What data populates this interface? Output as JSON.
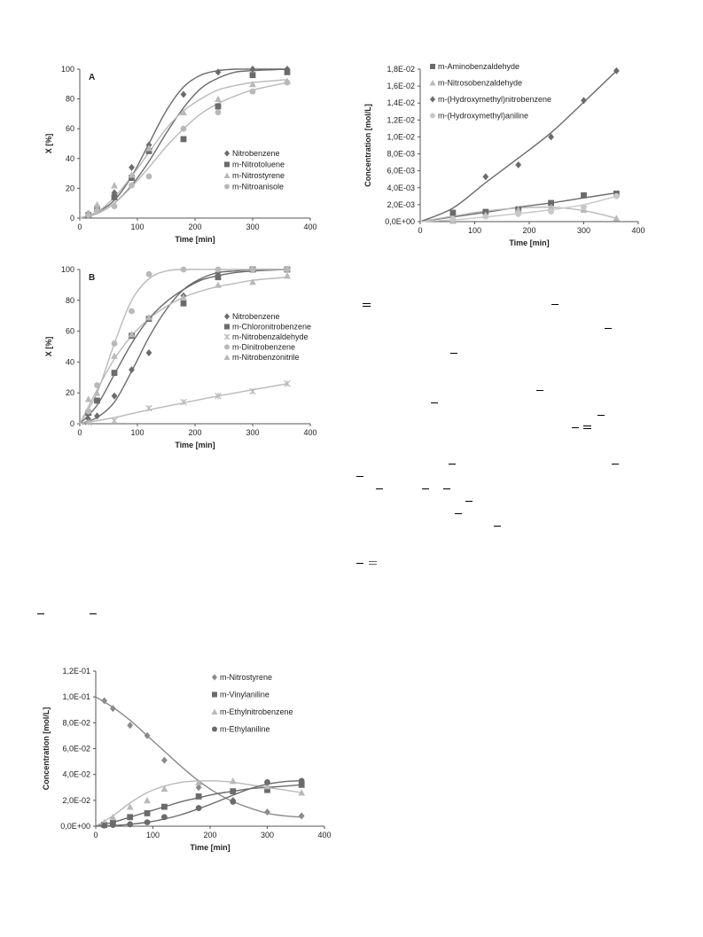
{
  "colors": {
    "dark": "#6b6b6b",
    "mid": "#8a8a8a",
    "light": "#b9b9b9",
    "lighter": "#c8c8c8",
    "axis": "#555555"
  },
  "chart_data": [
    {
      "id": "A",
      "type": "scatter",
      "panel_label": "A",
      "xlabel": "Time [min]",
      "ylabel": "X [%]",
      "xlim": [
        0,
        400
      ],
      "ylim": [
        0,
        100
      ],
      "xticks": [
        "0",
        "100",
        "200",
        "300",
        "400"
      ],
      "yticks": [
        "0",
        "20",
        "40",
        "60",
        "80",
        "100"
      ],
      "legend_position": "right",
      "series": [
        {
          "name": "Nitrobenzene",
          "marker": "diamond",
          "color": "#6b6b6b",
          "x": [
            15,
            30,
            60,
            90,
            120,
            180,
            240,
            300,
            360
          ],
          "y": [
            3,
            8,
            17,
            34,
            49,
            83,
            98,
            100,
            100
          ],
          "fit": {
            "x": [
              0,
              30,
              60,
              90,
              120,
              150,
              180,
              210,
              240,
              270,
              300,
              360
            ],
            "y": [
              0,
              4,
              12,
              28,
              50,
              72,
              88,
              96,
              99,
              100,
              100,
              100
            ]
          }
        },
        {
          "name": "m-Nitrotoluene",
          "marker": "square",
          "color": "#6b6b6b",
          "x": [
            15,
            30,
            60,
            90,
            120,
            180,
            240,
            300,
            360
          ],
          "y": [
            2,
            6,
            14,
            27,
            45,
            53,
            75,
            96,
            98
          ],
          "fit": {
            "x": [
              0,
              30,
              60,
              90,
              120,
              150,
              180,
              210,
              240,
              270,
              300,
              360
            ],
            "y": [
              0,
              3,
              10,
              22,
              38,
              57,
              74,
              87,
              94,
              98,
              99,
              100
            ]
          }
        },
        {
          "name": "m-Nitrostyrene",
          "marker": "triangle",
          "color": "#b9b9b9",
          "x": [
            15,
            30,
            60,
            90,
            120,
            180,
            240,
            300,
            360
          ],
          "y": [
            3,
            9,
            22,
            29,
            47,
            71,
            80,
            90,
            92
          ],
          "fit": {
            "x": [
              0,
              30,
              60,
              90,
              120,
              150,
              180,
              210,
              240,
              270,
              300,
              360
            ],
            "y": [
              0,
              4,
              14,
              28,
              44,
              60,
              72,
              80,
              86,
              89,
              91,
              93
            ]
          }
        },
        {
          "name": "m-Nitroanisole",
          "marker": "circle",
          "color": "#b9b9b9",
          "x": [
            15,
            30,
            60,
            90,
            120,
            180,
            240,
            300,
            360
          ],
          "y": [
            2,
            5,
            8,
            22,
            28,
            60,
            71,
            85,
            91
          ],
          "fit": {
            "x": [
              0,
              30,
              60,
              90,
              120,
              150,
              180,
              210,
              240,
              270,
              300,
              360
            ],
            "y": [
              0,
              3,
              10,
              21,
              34,
              48,
              60,
              70,
              77,
              82,
              86,
              91
            ]
          }
        }
      ]
    },
    {
      "id": "B",
      "type": "scatter",
      "panel_label": "B",
      "xlabel": "Time [min]",
      "ylabel": "X [%]",
      "xlim": [
        0,
        400
      ],
      "ylim": [
        0,
        100
      ],
      "xticks": [
        "0",
        "100",
        "200",
        "300",
        "400"
      ],
      "yticks": [
        "0",
        "20",
        "40",
        "60",
        "80",
        "100"
      ],
      "legend_position": "right",
      "series": [
        {
          "name": "Nitrobenzene",
          "marker": "diamond",
          "color": "#6b6b6b",
          "x": [
            15,
            30,
            60,
            90,
            120,
            180,
            240,
            300,
            360
          ],
          "y": [
            3,
            5,
            18,
            35,
            46,
            83,
            98,
            100,
            100
          ],
          "fit": {
            "x": [
              0,
              30,
              60,
              90,
              120,
              150,
              180,
              210,
              240,
              270,
              300,
              360
            ],
            "y": [
              0,
              4,
              14,
              34,
              56,
              74,
              87,
              94,
              98,
              99,
              100,
              100
            ]
          }
        },
        {
          "name": "m-Chloronitrobenzene",
          "marker": "square",
          "color": "#6b6b6b",
          "x": [
            15,
            30,
            60,
            90,
            120,
            180,
            240,
            300,
            360
          ],
          "y": [
            7,
            15,
            33,
            57,
            68,
            78,
            95,
            100,
            100
          ],
          "fit": {
            "x": [
              0,
              30,
              60,
              90,
              120,
              150,
              180,
              210,
              240,
              270,
              300,
              360
            ],
            "y": [
              0,
              12,
              32,
              52,
              68,
              79,
              87,
              93,
              96,
              98,
              99,
              100
            ]
          }
        },
        {
          "name": "m-Nitrobenzaldehyde",
          "marker": "star",
          "color": "#b9b9b9",
          "x": [
            15,
            60,
            120,
            180,
            240,
            300,
            360
          ],
          "y": [
            1,
            2,
            10,
            14,
            18,
            21,
            26
          ],
          "fit": {
            "x": [
              0,
              60,
              120,
              180,
              240,
              300,
              360
            ],
            "y": [
              0,
              4,
              9,
              13.5,
              18,
              22,
              26
            ]
          }
        },
        {
          "name": "m-Dinitrobenzene",
          "marker": "circle",
          "color": "#b9b9b9",
          "x": [
            15,
            30,
            60,
            90,
            120,
            180,
            240,
            300,
            360
          ],
          "y": [
            8,
            25,
            52,
            73,
            97,
            100,
            100,
            100,
            100
          ],
          "fit": {
            "x": [
              0,
              30,
              60,
              90,
              120,
              150,
              180,
              240,
              300,
              360
            ],
            "y": [
              0,
              20,
              52,
              80,
              94,
              99,
              100,
              100,
              100,
              100
            ]
          }
        },
        {
          "name": "m-Nitrobenzonitrile",
          "marker": "triangle",
          "color": "#b9b9b9",
          "x": [
            15,
            30,
            60,
            90,
            120,
            180,
            240,
            300,
            360
          ],
          "y": [
            16,
            20,
            44,
            58,
            69,
            82,
            90,
            92,
            96
          ],
          "fit": {
            "x": [
              0,
              30,
              60,
              90,
              120,
              150,
              180,
              210,
              240,
              270,
              300,
              360
            ],
            "y": [
              0,
              22,
              42,
              57,
              68,
              76,
              82,
              86,
              89,
              91,
              93,
              95
            ]
          }
        }
      ]
    },
    {
      "id": "C",
      "type": "scatter",
      "panel_label": "",
      "xlabel": "Time [min]",
      "ylabel": "Concentration [mol/L]",
      "xlim": [
        0,
        400
      ],
      "ylim": [
        0,
        0.018
      ],
      "xticks": [
        "0",
        "100",
        "200",
        "300",
        "400"
      ],
      "yticks": [
        "0,0E+00",
        "2,0E-03",
        "4,0E-03",
        "6,0E-03",
        "8,0E-03",
        "1,0E-02",
        "1,2E-02",
        "1,4E-02",
        "1,6E-02",
        "1,8E-02"
      ],
      "legend_position": "top-left",
      "series": [
        {
          "name": "m-Aminobenzaldehyde",
          "marker": "square",
          "color": "#6b6b6b",
          "x": [
            60,
            120,
            180,
            240,
            300,
            360
          ],
          "y": [
            0.00105,
            0.00115,
            0.00145,
            0.0022,
            0.0031,
            0.0033
          ],
          "fit": {
            "x": [
              0,
              60,
              120,
              180,
              240,
              300,
              360
            ],
            "y": [
              0,
              0.00055,
              0.0011,
              0.0017,
              0.0022,
              0.0028,
              0.0034
            ]
          }
        },
        {
          "name": "m-Nitrosobenzaldehyde",
          "marker": "triangle",
          "color": "#b9b9b9",
          "x": [
            60,
            120,
            180,
            240,
            300,
            360
          ],
          "y": [
            0.0001,
            0.0008,
            0.0014,
            0.0017,
            0.0014,
            0.0004
          ],
          "fit": {
            "x": [
              0,
              60,
              120,
              180,
              240,
              300,
              360
            ],
            "y": [
              0,
              0.00065,
              0.00125,
              0.0016,
              0.0017,
              0.0013,
              0.0004
            ]
          }
        },
        {
          "name": "m-(Hydroxymethyl)nitrobenzene",
          "marker": "diamond",
          "color": "#6b6b6b",
          "x": [
            120,
            180,
            240,
            300,
            360
          ],
          "y": [
            0.0053,
            0.0067,
            0.01,
            0.0143,
            0.0178
          ],
          "fit": {
            "x": [
              0,
              60,
              120,
              180,
              240,
              300,
              360
            ],
            "y": [
              0,
              0.0016,
              0.0046,
              0.0075,
              0.0105,
              0.0141,
              0.0178
            ]
          }
        },
        {
          "name": "m-(Hydroxymethyl)aniline",
          "marker": "circle",
          "color": "#c8c8c8",
          "x": [
            60,
            120,
            180,
            240,
            300,
            360
          ],
          "y": [
            0.0003,
            0.0006,
            0.0009,
            0.0012,
            0.0017,
            0.003
          ],
          "fit": {
            "x": [
              0,
              60,
              120,
              180,
              240,
              300,
              360
            ],
            "y": [
              0,
              0.0002,
              0.00055,
              0.00095,
              0.0014,
              0.002,
              0.003
            ]
          }
        }
      ]
    },
    {
      "id": "D",
      "type": "scatter",
      "panel_label": "",
      "xlabel": "Time [min]",
      "ylabel": "Concentration  [mol/L]",
      "xlim": [
        0,
        400
      ],
      "ylim": [
        0,
        0.12
      ],
      "xticks": [
        "0",
        "100",
        "200",
        "300",
        "400"
      ],
      "yticks": [
        "0,0E+00",
        "2,0E-02",
        "4,0E-02",
        "6,0E-02",
        "8,0E-02",
        "1,0E-01",
        "1,2E-01"
      ],
      "legend_position": "top-right",
      "series": [
        {
          "name": "m-Nitrostyrene",
          "marker": "diamond",
          "color": "#8a8a8a",
          "x": [
            15,
            30,
            60,
            90,
            120,
            180,
            240,
            300,
            360
          ],
          "y": [
            0.097,
            0.091,
            0.078,
            0.07,
            0.051,
            0.03,
            0.02,
            0.011,
            0.008
          ],
          "fit": {
            "x": [
              0,
              30,
              60,
              90,
              120,
              150,
              180,
              210,
              240,
              270,
              300,
              330,
              360
            ],
            "y": [
              0.1,
              0.092,
              0.082,
              0.07,
              0.058,
              0.046,
              0.035,
              0.026,
              0.019,
              0.014,
              0.01,
              0.008,
              0.007
            ]
          }
        },
        {
          "name": "m-Vinylaniline",
          "marker": "square",
          "color": "#6b6b6b",
          "x": [
            15,
            30,
            60,
            90,
            120,
            180,
            240,
            300,
            360
          ],
          "y": [
            0.001,
            0.003,
            0.007,
            0.01,
            0.015,
            0.023,
            0.027,
            0.028,
            0.032
          ],
          "fit": {
            "x": [
              0,
              30,
              60,
              90,
              120,
              150,
              180,
              210,
              240,
              270,
              300,
              360
            ],
            "y": [
              0,
              0.003,
              0.007,
              0.011,
              0.015,
              0.019,
              0.022,
              0.025,
              0.027,
              0.029,
              0.03,
              0.032
            ]
          }
        },
        {
          "name": "m-Ethylnitrobenzene",
          "marker": "triangle",
          "color": "#b9b9b9",
          "x": [
            15,
            30,
            60,
            90,
            120,
            180,
            240,
            300,
            360
          ],
          "y": [
            0.003,
            0.007,
            0.015,
            0.02,
            0.029,
            0.034,
            0.035,
            0.031,
            0.026
          ],
          "fit": {
            "x": [
              0,
              30,
              60,
              90,
              120,
              150,
              180,
              210,
              240,
              270,
              300,
              360
            ],
            "y": [
              0,
              0.008,
              0.018,
              0.026,
              0.031,
              0.034,
              0.035,
              0.035,
              0.034,
              0.032,
              0.03,
              0.026
            ]
          }
        },
        {
          "name": "m-Ethylaniline",
          "marker": "circle",
          "color": "#6b6b6b",
          "x": [
            15,
            30,
            60,
            90,
            120,
            180,
            240,
            300,
            360
          ],
          "y": [
            0.0005,
            0.001,
            0.0015,
            0.003,
            0.007,
            0.014,
            0.019,
            0.034,
            0.035
          ],
          "fit": {
            "x": [
              0,
              30,
              60,
              90,
              120,
              150,
              180,
              210,
              240,
              270,
              300,
              330,
              360
            ],
            "y": [
              0,
              0.0005,
              0.0015,
              0.003,
              0.0055,
              0.009,
              0.0135,
              0.0185,
              0.024,
              0.029,
              0.0325,
              0.0345,
              0.0352
            ]
          }
        }
      ]
    }
  ]
}
